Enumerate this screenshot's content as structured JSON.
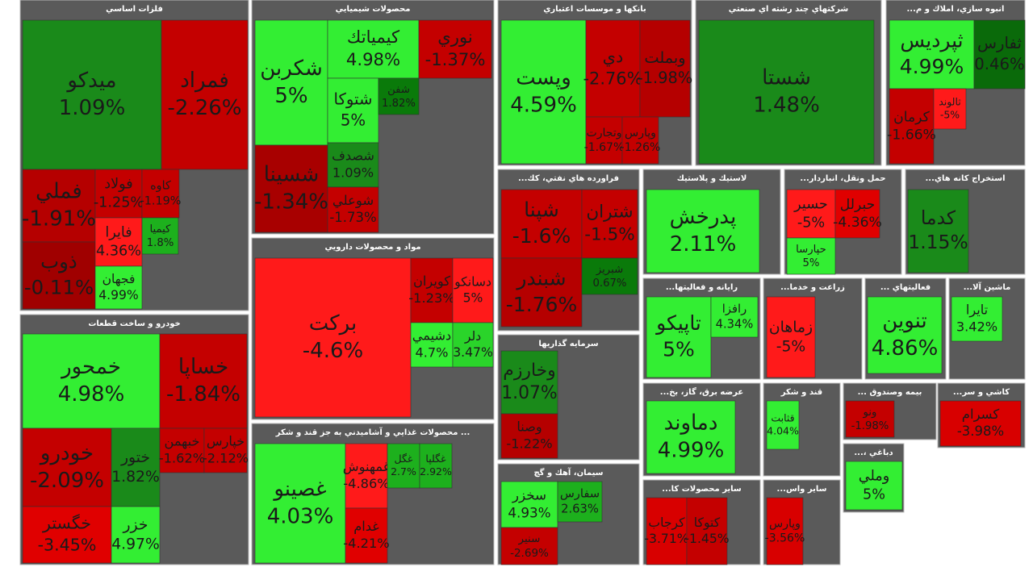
{
  "sectors": [
    {
      "title": "فلزات اساسي",
      "tiles": [
        {
          "name": "ميدكو",
          "change": "1.09%",
          "color": "#1a8a1a"
        },
        {
          "name": "فمراد",
          "change": "-2.26%",
          "color": "#c40000"
        },
        {
          "name": "فملي",
          "change": "-1.91%",
          "color": "#b50000"
        },
        {
          "name": "ذوب",
          "change": "-0.11%",
          "color": "#a00000"
        },
        {
          "name": "فولاد",
          "change": "-1.25%",
          "color": "#c40000"
        },
        {
          "name": "كاوه",
          "change": "-1.19%",
          "color": "#c40000"
        },
        {
          "name": "فايرا",
          "change": "4.36%",
          "color": "#ff1a1a"
        },
        {
          "name": "فجهان",
          "change": "4.99%",
          "color": "#33ee33"
        },
        {
          "name": "كيميا",
          "change": "1.8%",
          "color": "#1db01d"
        }
      ]
    },
    {
      "title": "محصولات شيميايي",
      "tiles": [
        {
          "name": "شكربن",
          "change": "5%",
          "color": "#33ee33"
        },
        {
          "name": "كيمياتك",
          "change": "4.98%",
          "color": "#33ee33"
        },
        {
          "name": "نوري",
          "change": "-1.37%",
          "color": "#c40000"
        },
        {
          "name": "شتوكا",
          "change": "5%",
          "color": "#33ee33"
        },
        {
          "name": "شسينا",
          "change": "-1.34%",
          "color": "#a80000"
        },
        {
          "name": "شصدف",
          "change": "1.09%",
          "color": "#1a8a1a"
        },
        {
          "name": "شوعلي",
          "change": "-1.73%",
          "color": "#c40000"
        },
        {
          "name": "شفن",
          "change": "1.82%",
          "color": "#0a7a0a"
        }
      ]
    },
    {
      "title": "مواد و محصولات دارويي",
      "tiles": [
        {
          "name": "بركت",
          "change": "-4.6%",
          "color": "#ff1a1a"
        },
        {
          "name": "كويران",
          "change": "-1.23%",
          "color": "#c40000"
        },
        {
          "name": "دسانكو",
          "change": "5%",
          "color": "#ff1a1a"
        },
        {
          "name": "دشيمي",
          "change": "4.7%",
          "color": "#33ee33"
        },
        {
          "name": "دلر",
          "change": "3.47%",
          "color": "#2ad42a"
        }
      ]
    },
    {
      "title": "محصولات غذايي و آشاميدني به جز قند و شكر ...",
      "tiles": [
        {
          "name": "غصينو",
          "change": "4.03%",
          "color": "#33ee33"
        },
        {
          "name": "غمهنوش",
          "change": "-4.86%",
          "color": "#ff1a1a"
        },
        {
          "name": "غدام",
          "change": "-4.21%",
          "color": "#e00000"
        },
        {
          "name": "غگل",
          "change": "2.7%",
          "color": "#1db01d"
        },
        {
          "name": "غگلپا",
          "change": "2.92%",
          "color": "#1db01d"
        }
      ]
    },
    {
      "title": "خودرو و ساخت قطعات",
      "tiles": [
        {
          "name": "خمحور",
          "change": "4.98%",
          "color": "#33ee33"
        },
        {
          "name": "خساپا",
          "change": "-1.84%",
          "color": "#c40000"
        },
        {
          "name": "خودرو",
          "change": "-2.09%",
          "color": "#c40000"
        },
        {
          "name": "ختور",
          "change": "1.82%",
          "color": "#1a8a1a"
        },
        {
          "name": "خگستر",
          "change": "-3.45%",
          "color": "#e00000"
        },
        {
          "name": "خزر",
          "change": "4.97%",
          "color": "#33ee33"
        },
        {
          "name": "خبهمن",
          "change": "-1.62%",
          "color": "#c40000"
        },
        {
          "name": "خپارس",
          "change": "-2.12%",
          "color": "#c40000"
        }
      ]
    },
    {
      "title": "بانكها و موسسات اعتباري",
      "tiles": [
        {
          "name": "وپست",
          "change": "4.59%",
          "color": "#33ee33"
        },
        {
          "name": "دي",
          "change": "-2.76%",
          "color": "#c40000"
        },
        {
          "name": "وبملت",
          "change": "-1.98%",
          "color": "#b50000"
        },
        {
          "name": "وتجارت",
          "change": "-1.67%",
          "color": "#c40000"
        },
        {
          "name": "وپارس",
          "change": "-1.26%",
          "color": "#c40000"
        }
      ]
    },
    {
      "title": "شركتهاي چند رشته اي صنعتي",
      "tiles": [
        {
          "name": "شستا",
          "change": "1.48%",
          "color": "#1a8a1a"
        }
      ]
    },
    {
      "title": "...انبوه سازي، املاك و م",
      "tiles": [
        {
          "name": "ثپرديس",
          "change": "4.99%",
          "color": "#33ee33"
        },
        {
          "name": "ثفارس",
          "change": "0.46%",
          "color": "#0a6a0a"
        },
        {
          "name": "كرمان",
          "change": "-1.66%",
          "color": "#c40000"
        },
        {
          "name": "ثالوند",
          "change": "-5%",
          "color": "#ff1a1a"
        }
      ]
    },
    {
      "title": "...فراورده هاي نفتي، كك",
      "tiles": [
        {
          "name": "شپنا",
          "change": "-1.6%",
          "color": "#c40000"
        },
        {
          "name": "شتران",
          "change": "-1.5%",
          "color": "#c40000"
        },
        {
          "name": "شبندر",
          "change": "-1.76%",
          "color": "#b50000"
        },
        {
          "name": "شبريز",
          "change": "0.67%",
          "color": "#0a7a0a"
        }
      ]
    },
    {
      "title": "لاستيك و پلاستيك",
      "tiles": [
        {
          "name": "پدرخش",
          "change": "2.11%",
          "color": "#33ee33"
        }
      ]
    },
    {
      "title": "...حمل ونقل، انباردار",
      "tiles": [
        {
          "name": "حسير",
          "change": "-5%",
          "color": "#ff1a1a"
        },
        {
          "name": "حپارسا",
          "change": "5%",
          "color": "#33ee33"
        },
        {
          "name": "حبرلل",
          "change": "-4.36%",
          "color": "#e00000"
        }
      ]
    },
    {
      "title": "...استخراج كانه هاي",
      "tiles": [
        {
          "name": "كدما",
          "change": "1.15%",
          "color": "#1a8a1a"
        }
      ]
    },
    {
      "title": "...رايانه و فعاليتها",
      "tiles": [
        {
          "name": "تاپيكو",
          "change": "5%",
          "color": "#33ee33"
        },
        {
          "name": "رافزا",
          "change": "4.34%",
          "color": "#33ee33"
        }
      ]
    },
    {
      "title": "...زراعت و خدما",
      "tiles": [
        {
          "name": "زماهان",
          "change": "-5%",
          "color": "#ff1a1a"
        }
      ]
    },
    {
      "title": "... فعاليتهاي",
      "tiles": [
        {
          "name": "تنوين",
          "change": "4.86%",
          "color": "#33ee33"
        }
      ]
    },
    {
      "title": "...ماشين آلا",
      "tiles": [
        {
          "name": "تايرا",
          "change": "3.42%",
          "color": "#33ee33"
        }
      ]
    },
    {
      "title": "سرمايه گذاريها",
      "tiles": [
        {
          "name": "وخارزم",
          "change": "1.07%",
          "color": "#1a8a1a"
        },
        {
          "name": "وصنا",
          "change": "-1.22%",
          "color": "#b50000"
        }
      ]
    },
    {
      "title": "...عرضه برق، گاز، بخ",
      "tiles": [
        {
          "name": "دماوند",
          "change": "4.99%",
          "color": "#33ee33"
        }
      ]
    },
    {
      "title": "قند و شكر",
      "tiles": [
        {
          "name": "قثابت",
          "change": "4.04%",
          "color": "#33ee33"
        }
      ]
    },
    {
      "title": "... بيمه وصندوق",
      "tiles": [
        {
          "name": "ونو",
          "change": "-1.98%",
          "color": "#c40000"
        }
      ]
    },
    {
      "title": "...كاشي و سر",
      "tiles": [
        {
          "name": "كسرام",
          "change": "-3.98%",
          "color": "#d80000"
        }
      ]
    },
    {
      "title": "سيمان، آهك و گچ",
      "tiles": [
        {
          "name": "سخزر",
          "change": "4.93%",
          "color": "#33ee33"
        },
        {
          "name": "سفارس",
          "change": "2.63%",
          "color": "#1db01d"
        },
        {
          "name": "سنير",
          "change": "-2.69%",
          "color": "#c40000"
        }
      ]
    },
    {
      "title": "...ساير محصولات كا",
      "tiles": [
        {
          "name": "كرجاب",
          "change": "-3.71%",
          "color": "#d80000"
        },
        {
          "name": "كتوكا",
          "change": "-1.45%",
          "color": "#c40000"
        }
      ]
    },
    {
      "title": "...ساير واس",
      "tiles": [
        {
          "name": "وپارس",
          "change": "-3.56%",
          "color": "#d80000"
        }
      ]
    },
    {
      "title": "...، دباغي",
      "tiles": [
        {
          "name": "وملي",
          "change": "5%",
          "color": "#33ee33"
        }
      ]
    }
  ]
}
